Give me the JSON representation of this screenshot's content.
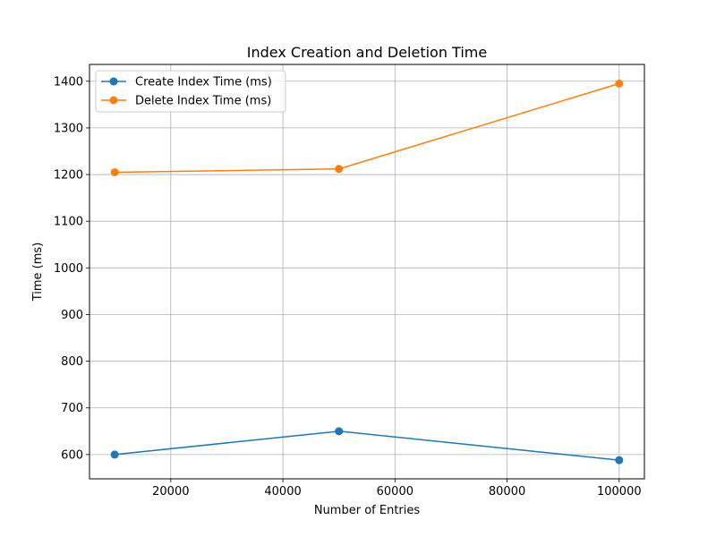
{
  "chart_data": {
    "type": "line",
    "title": "Index Creation and Deletion Time",
    "xlabel": "Number of Entries",
    "ylabel": "Time (ms)",
    "x": [
      10000,
      50000,
      100000
    ],
    "series": [
      {
        "name": "Create Index Time (ms)",
        "values": [
          600,
          650,
          588
        ],
        "color": "#1f77b4",
        "marker": "circle"
      },
      {
        "name": "Delete Index Time (ms)",
        "values": [
          1205,
          1212,
          1395
        ],
        "color": "#ff7f0e",
        "marker": "circle"
      }
    ],
    "xlim": [
      5500,
      104500
    ],
    "ylim": [
      548,
      1436
    ],
    "xticks": [
      20000,
      40000,
      60000,
      80000,
      100000
    ],
    "xtick_labels": [
      "20000",
      "40000",
      "60000",
      "80000",
      "100000"
    ],
    "yticks": [
      600,
      700,
      800,
      900,
      1000,
      1100,
      1200,
      1300,
      1400
    ],
    "ytick_labels": [
      "600",
      "700",
      "800",
      "900",
      "1000",
      "1100",
      "1200",
      "1300",
      "1400"
    ],
    "grid": true,
    "legend_position": "upper-left"
  }
}
